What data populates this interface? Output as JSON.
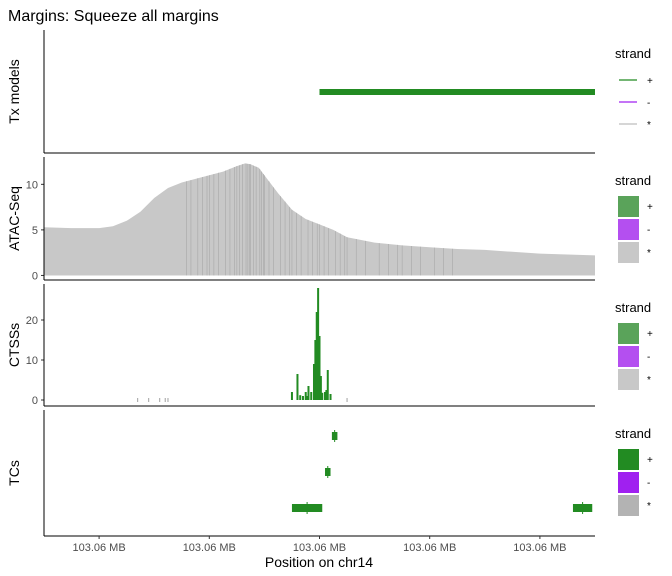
{
  "title": "Margins: Squeeze all margins",
  "chart_data": {
    "type": "genome-track",
    "xlabel": "Position on chr14",
    "x_tick_labels": [
      "103.06 MB",
      "103.06 MB",
      "103.06 MB",
      "103.06 MB",
      "103.06 MB"
    ],
    "x_tick_positions": [
      -0.8,
      -0.4,
      0.0,
      0.4,
      0.8
    ],
    "xlim": [
      -1.0,
      1.0
    ],
    "panels": [
      {
        "name": "tx-models",
        "ylabel": "Tx models",
        "type": "segment",
        "y_ticks": [],
        "segments": [
          {
            "start": 0.0,
            "end": 1.0,
            "strand": "+"
          }
        ]
      },
      {
        "name": "atac-seq",
        "ylabel": "ATAC-Seq",
        "type": "area",
        "ylim": [
          -0.5,
          13.0
        ],
        "y_ticks": [
          0,
          5,
          10
        ],
        "x": [
          -1.0,
          -0.9,
          -0.8,
          -0.75,
          -0.7,
          -0.65,
          -0.6,
          -0.55,
          -0.5,
          -0.45,
          -0.4,
          -0.35,
          -0.3,
          -0.27,
          -0.25,
          -0.22,
          -0.2,
          -0.15,
          -0.1,
          -0.05,
          0.0,
          0.05,
          0.1,
          0.2,
          0.3,
          0.4,
          0.5,
          0.6,
          0.7,
          0.8,
          0.9,
          1.0
        ],
        "values": [
          5.3,
          5.2,
          5.2,
          5.4,
          6.0,
          7.0,
          8.5,
          9.6,
          10.2,
          10.6,
          11.0,
          11.4,
          12.0,
          12.3,
          12.2,
          11.8,
          11.0,
          9.0,
          7.2,
          6.2,
          5.6,
          5.0,
          4.2,
          3.6,
          3.3,
          3.1,
          2.9,
          2.8,
          2.6,
          2.4,
          2.3,
          2.2
        ],
        "strand": "*"
      },
      {
        "name": "ctsss",
        "ylabel": "CTSSs",
        "type": "bar",
        "ylim": [
          -1.5,
          29.0
        ],
        "y_ticks": [
          0,
          10,
          20
        ],
        "x": [
          -0.1,
          -0.08,
          -0.07,
          -0.05,
          -0.04,
          -0.03,
          -0.02,
          -0.015,
          -0.01,
          -0.005,
          0.0,
          0.005,
          0.01,
          0.02,
          0.03,
          0.04,
          -0.06,
          -0.045,
          0.025
        ],
        "values": [
          2.0,
          6.5,
          1.2,
          2.0,
          3.5,
          2.0,
          9.0,
          15.0,
          22.0,
          28.0,
          16.0,
          6.0,
          1.8,
          2.0,
          7.5,
          1.5,
          1.0,
          1.0,
          2.5
        ],
        "strand": "+",
        "tiny_x": [
          -0.66,
          -0.62,
          -0.58,
          -0.56,
          -0.55,
          0.1
        ]
      },
      {
        "name": "tcs",
        "ylabel": "TCs",
        "type": "interval",
        "y_ticks": [],
        "intervals": [
          {
            "start": 0.045,
            "end": 0.065,
            "row": 3,
            "strand": "+"
          },
          {
            "start": 0.02,
            "end": 0.04,
            "row": 2,
            "strand": "+"
          },
          {
            "start": -0.1,
            "end": 0.01,
            "row": 1,
            "strand": "+"
          },
          {
            "start": 0.92,
            "end": 0.99,
            "row": 1,
            "strand": "+"
          }
        ]
      }
    ],
    "legends": [
      {
        "title": "strand",
        "style": "line",
        "entries": [
          {
            "label": "+",
            "color": "#228b22"
          },
          {
            "label": "-",
            "color": "#a020f0"
          },
          {
            "label": "*",
            "color": "#bebebe"
          }
        ]
      },
      {
        "title": "strand",
        "style": "fill",
        "entries": [
          {
            "label": "+",
            "color": "#5aa35a"
          },
          {
            "label": "-",
            "color": "#b44ff0"
          },
          {
            "label": "*",
            "color": "#c8c8c8"
          }
        ]
      },
      {
        "title": "strand",
        "style": "fill",
        "entries": [
          {
            "label": "+",
            "color": "#5aa35a"
          },
          {
            "label": "-",
            "color": "#b44ff0"
          },
          {
            "label": "*",
            "color": "#c8c8c8"
          }
        ]
      },
      {
        "title": "strand",
        "style": "fill",
        "entries": [
          {
            "label": "+",
            "color": "#228b22"
          },
          {
            "label": "-",
            "color": "#a020f0"
          },
          {
            "label": "*",
            "color": "#b3b3b3"
          }
        ]
      }
    ],
    "colors": {
      "plus": "#228b22",
      "minus": "#a020f0",
      "star": "#bebebe",
      "atac_fill": "#c8c8c8"
    }
  }
}
